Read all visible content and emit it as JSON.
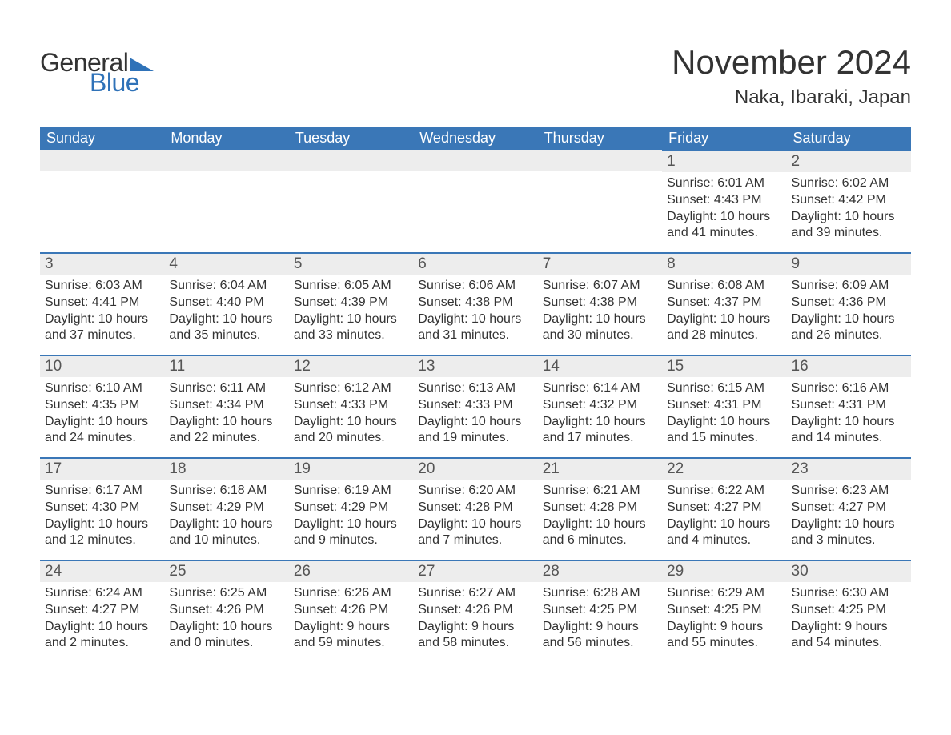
{
  "brand": {
    "text1": "General",
    "text2": "Blue",
    "triangle_color": "#2f72b8"
  },
  "title": "November 2024",
  "subtitle": "Naka, Ibaraki, Japan",
  "colors": {
    "header_bg": "#3a77b7",
    "header_text": "#ffffff",
    "daynum_bg": "#ededed",
    "row_border": "#3a77b7",
    "body_text": "#333333",
    "brand_blue": "#2f72b8"
  },
  "day_headers": [
    "Sunday",
    "Monday",
    "Tuesday",
    "Wednesday",
    "Thursday",
    "Friday",
    "Saturday"
  ],
  "weeks": [
    [
      null,
      null,
      null,
      null,
      null,
      {
        "n": "1",
        "sunrise": "Sunrise: 6:01 AM",
        "sunset": "Sunset: 4:43 PM",
        "daylight": "Daylight: 10 hours and 41 minutes."
      },
      {
        "n": "2",
        "sunrise": "Sunrise: 6:02 AM",
        "sunset": "Sunset: 4:42 PM",
        "daylight": "Daylight: 10 hours and 39 minutes."
      }
    ],
    [
      {
        "n": "3",
        "sunrise": "Sunrise: 6:03 AM",
        "sunset": "Sunset: 4:41 PM",
        "daylight": "Daylight: 10 hours and 37 minutes."
      },
      {
        "n": "4",
        "sunrise": "Sunrise: 6:04 AM",
        "sunset": "Sunset: 4:40 PM",
        "daylight": "Daylight: 10 hours and 35 minutes."
      },
      {
        "n": "5",
        "sunrise": "Sunrise: 6:05 AM",
        "sunset": "Sunset: 4:39 PM",
        "daylight": "Daylight: 10 hours and 33 minutes."
      },
      {
        "n": "6",
        "sunrise": "Sunrise: 6:06 AM",
        "sunset": "Sunset: 4:38 PM",
        "daylight": "Daylight: 10 hours and 31 minutes."
      },
      {
        "n": "7",
        "sunrise": "Sunrise: 6:07 AM",
        "sunset": "Sunset: 4:38 PM",
        "daylight": "Daylight: 10 hours and 30 minutes."
      },
      {
        "n": "8",
        "sunrise": "Sunrise: 6:08 AM",
        "sunset": "Sunset: 4:37 PM",
        "daylight": "Daylight: 10 hours and 28 minutes."
      },
      {
        "n": "9",
        "sunrise": "Sunrise: 6:09 AM",
        "sunset": "Sunset: 4:36 PM",
        "daylight": "Daylight: 10 hours and 26 minutes."
      }
    ],
    [
      {
        "n": "10",
        "sunrise": "Sunrise: 6:10 AM",
        "sunset": "Sunset: 4:35 PM",
        "daylight": "Daylight: 10 hours and 24 minutes."
      },
      {
        "n": "11",
        "sunrise": "Sunrise: 6:11 AM",
        "sunset": "Sunset: 4:34 PM",
        "daylight": "Daylight: 10 hours and 22 minutes."
      },
      {
        "n": "12",
        "sunrise": "Sunrise: 6:12 AM",
        "sunset": "Sunset: 4:33 PM",
        "daylight": "Daylight: 10 hours and 20 minutes."
      },
      {
        "n": "13",
        "sunrise": "Sunrise: 6:13 AM",
        "sunset": "Sunset: 4:33 PM",
        "daylight": "Daylight: 10 hours and 19 minutes."
      },
      {
        "n": "14",
        "sunrise": "Sunrise: 6:14 AM",
        "sunset": "Sunset: 4:32 PM",
        "daylight": "Daylight: 10 hours and 17 minutes."
      },
      {
        "n": "15",
        "sunrise": "Sunrise: 6:15 AM",
        "sunset": "Sunset: 4:31 PM",
        "daylight": "Daylight: 10 hours and 15 minutes."
      },
      {
        "n": "16",
        "sunrise": "Sunrise: 6:16 AM",
        "sunset": "Sunset: 4:31 PM",
        "daylight": "Daylight: 10 hours and 14 minutes."
      }
    ],
    [
      {
        "n": "17",
        "sunrise": "Sunrise: 6:17 AM",
        "sunset": "Sunset: 4:30 PM",
        "daylight": "Daylight: 10 hours and 12 minutes."
      },
      {
        "n": "18",
        "sunrise": "Sunrise: 6:18 AM",
        "sunset": "Sunset: 4:29 PM",
        "daylight": "Daylight: 10 hours and 10 minutes."
      },
      {
        "n": "19",
        "sunrise": "Sunrise: 6:19 AM",
        "sunset": "Sunset: 4:29 PM",
        "daylight": "Daylight: 10 hours and 9 minutes."
      },
      {
        "n": "20",
        "sunrise": "Sunrise: 6:20 AM",
        "sunset": "Sunset: 4:28 PM",
        "daylight": "Daylight: 10 hours and 7 minutes."
      },
      {
        "n": "21",
        "sunrise": "Sunrise: 6:21 AM",
        "sunset": "Sunset: 4:28 PM",
        "daylight": "Daylight: 10 hours and 6 minutes."
      },
      {
        "n": "22",
        "sunrise": "Sunrise: 6:22 AM",
        "sunset": "Sunset: 4:27 PM",
        "daylight": "Daylight: 10 hours and 4 minutes."
      },
      {
        "n": "23",
        "sunrise": "Sunrise: 6:23 AM",
        "sunset": "Sunset: 4:27 PM",
        "daylight": "Daylight: 10 hours and 3 minutes."
      }
    ],
    [
      {
        "n": "24",
        "sunrise": "Sunrise: 6:24 AM",
        "sunset": "Sunset: 4:27 PM",
        "daylight": "Daylight: 10 hours and 2 minutes."
      },
      {
        "n": "25",
        "sunrise": "Sunrise: 6:25 AM",
        "sunset": "Sunset: 4:26 PM",
        "daylight": "Daylight: 10 hours and 0 minutes."
      },
      {
        "n": "26",
        "sunrise": "Sunrise: 6:26 AM",
        "sunset": "Sunset: 4:26 PM",
        "daylight": "Daylight: 9 hours and 59 minutes."
      },
      {
        "n": "27",
        "sunrise": "Sunrise: 6:27 AM",
        "sunset": "Sunset: 4:26 PM",
        "daylight": "Daylight: 9 hours and 58 minutes."
      },
      {
        "n": "28",
        "sunrise": "Sunrise: 6:28 AM",
        "sunset": "Sunset: 4:25 PM",
        "daylight": "Daylight: 9 hours and 56 minutes."
      },
      {
        "n": "29",
        "sunrise": "Sunrise: 6:29 AM",
        "sunset": "Sunset: 4:25 PM",
        "daylight": "Daylight: 9 hours and 55 minutes."
      },
      {
        "n": "30",
        "sunrise": "Sunrise: 6:30 AM",
        "sunset": "Sunset: 4:25 PM",
        "daylight": "Daylight: 9 hours and 54 minutes."
      }
    ]
  ]
}
